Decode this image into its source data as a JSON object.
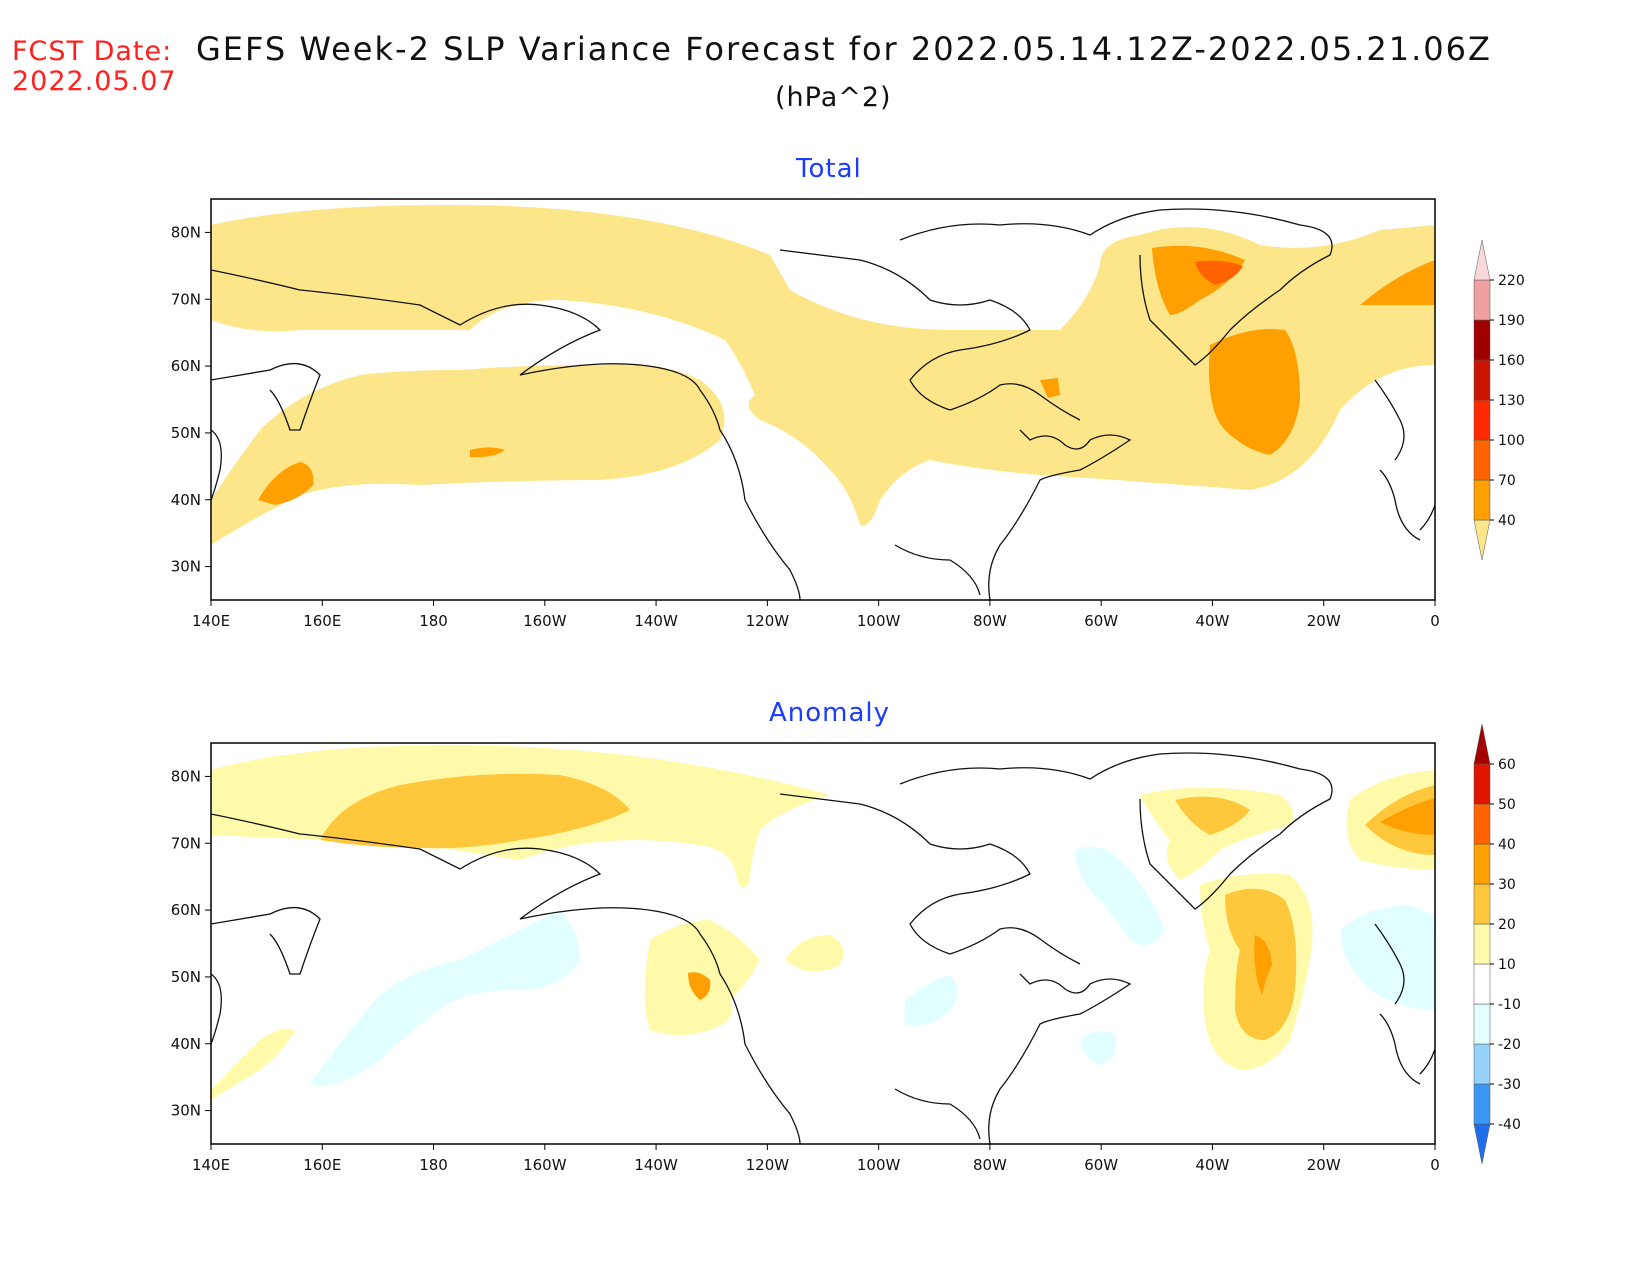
{
  "header": {
    "fcst_label": "FCST Date:",
    "fcst_date": "2022.05.07",
    "title": "GEFS Week-2 SLP Variance Forecast for 2022.05.14.12Z-2022.05.21.06Z",
    "units": "(hPa^2)"
  },
  "axes": {
    "lon_labels": [
      "140E",
      "160E",
      "180",
      "160W",
      "140W",
      "120W",
      "100W",
      "80W",
      "60W",
      "40W",
      "20W",
      "0"
    ],
    "lat_labels": [
      "80N",
      "70N",
      "60N",
      "50N",
      "40N",
      "30N"
    ],
    "lon_range": [
      140,
      360
    ],
    "lat_range": [
      25,
      85
    ]
  },
  "panels": [
    {
      "title": "Total",
      "colorbar": {
        "levels": [
          "40",
          "70",
          "100",
          "130",
          "160",
          "190",
          "220"
        ],
        "colors": [
          "#fde68a",
          "#ffa000",
          "#ff6400",
          "#ff2a00",
          "#c81400",
          "#a00000",
          "#f0a0a0",
          "#f8d8d8"
        ]
      }
    },
    {
      "title": "Anomaly",
      "colorbar": {
        "levels": [
          "-40",
          "-30",
          "-20",
          "-10",
          "10",
          "20",
          "30",
          "40",
          "50",
          "60"
        ],
        "colors": [
          "#1e6eeb",
          "#3c96f5",
          "#96d2fa",
          "#e1ffff",
          "#ffffff",
          "#fffaaa",
          "#ffc83c",
          "#ffa000",
          "#ff6400",
          "#e11400",
          "#a50000"
        ]
      }
    }
  ]
}
